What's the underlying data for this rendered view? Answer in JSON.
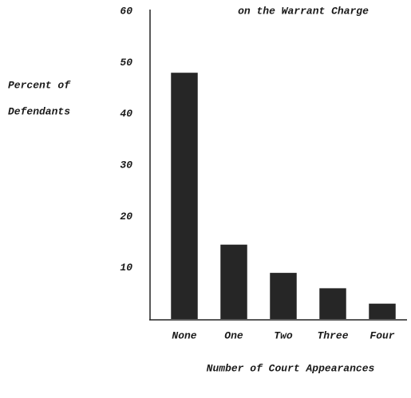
{
  "chart_data": {
    "type": "bar",
    "title": "on the Warrant Charge",
    "y_label": [
      "Percent of",
      "Defendants"
    ],
    "x_label": "Number of Court Appearances",
    "categories": [
      "None",
      "One",
      "Two",
      "Three",
      "Four"
    ],
    "values": [
      48,
      14.5,
      9,
      6,
      3
    ],
    "color": "#262626",
    "ylim": [
      0,
      60
    ],
    "yticks": [
      10,
      20,
      30,
      40,
      50,
      60
    ],
    "grid": false
  }
}
